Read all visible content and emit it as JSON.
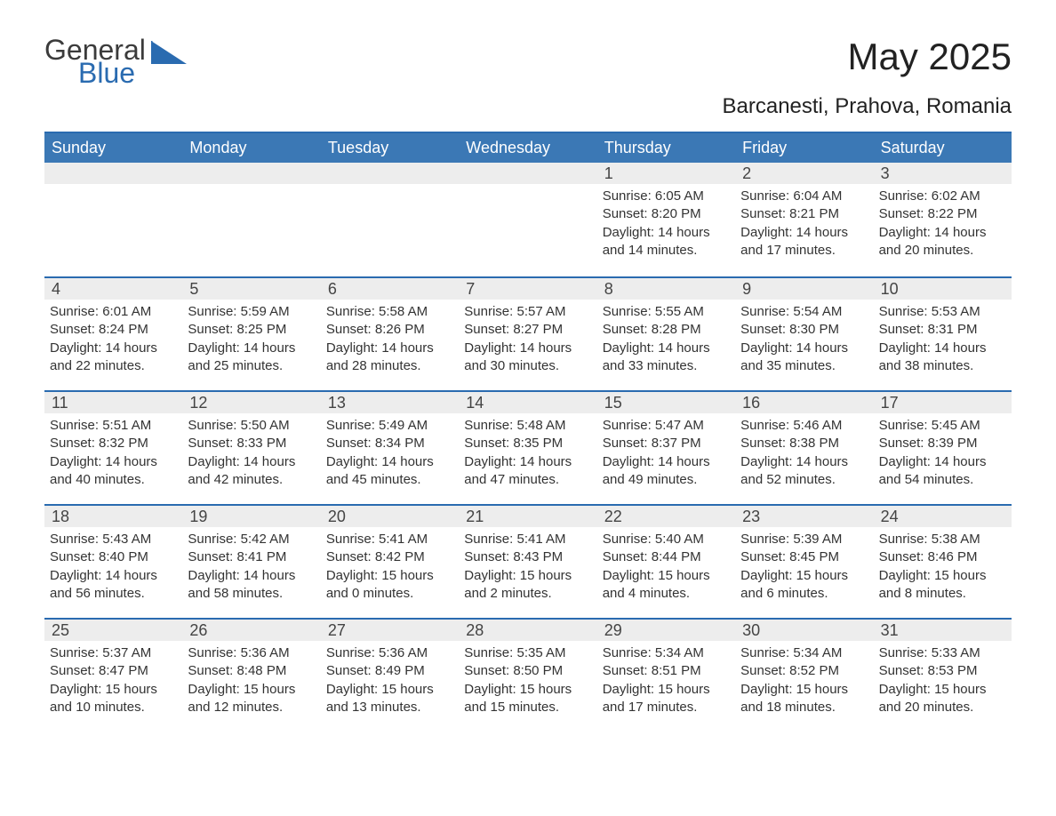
{
  "brand": {
    "word1": "General",
    "word2": "Blue"
  },
  "title": "May 2025",
  "location": "Barcanesti, Prahova, Romania",
  "colors": {
    "header_bg": "#3b78b5",
    "header_text": "#ffffff",
    "accent_border": "#2a6bb0",
    "daynum_bg": "#ededed",
    "text": "#333333",
    "page_bg": "#ffffff",
    "logo_gray": "#3b3b3b",
    "logo_blue": "#2a6bb0"
  },
  "typography": {
    "title_fontsize": 42,
    "location_fontsize": 24,
    "dow_fontsize": 18,
    "daynum_fontsize": 18,
    "body_fontsize": 15
  },
  "layout": {
    "columns": 7,
    "leading_blanks": 4,
    "cell_min_height": 128
  },
  "dow": [
    "Sunday",
    "Monday",
    "Tuesday",
    "Wednesday",
    "Thursday",
    "Friday",
    "Saturday"
  ],
  "days": [
    {
      "n": "1",
      "sunrise": "Sunrise: 6:05 AM",
      "sunset": "Sunset: 8:20 PM",
      "dlA": "Daylight: 14 hours",
      "dlB": "and 14 minutes."
    },
    {
      "n": "2",
      "sunrise": "Sunrise: 6:04 AM",
      "sunset": "Sunset: 8:21 PM",
      "dlA": "Daylight: 14 hours",
      "dlB": "and 17 minutes."
    },
    {
      "n": "3",
      "sunrise": "Sunrise: 6:02 AM",
      "sunset": "Sunset: 8:22 PM",
      "dlA": "Daylight: 14 hours",
      "dlB": "and 20 minutes."
    },
    {
      "n": "4",
      "sunrise": "Sunrise: 6:01 AM",
      "sunset": "Sunset: 8:24 PM",
      "dlA": "Daylight: 14 hours",
      "dlB": "and 22 minutes."
    },
    {
      "n": "5",
      "sunrise": "Sunrise: 5:59 AM",
      "sunset": "Sunset: 8:25 PM",
      "dlA": "Daylight: 14 hours",
      "dlB": "and 25 minutes."
    },
    {
      "n": "6",
      "sunrise": "Sunrise: 5:58 AM",
      "sunset": "Sunset: 8:26 PM",
      "dlA": "Daylight: 14 hours",
      "dlB": "and 28 minutes."
    },
    {
      "n": "7",
      "sunrise": "Sunrise: 5:57 AM",
      "sunset": "Sunset: 8:27 PM",
      "dlA": "Daylight: 14 hours",
      "dlB": "and 30 minutes."
    },
    {
      "n": "8",
      "sunrise": "Sunrise: 5:55 AM",
      "sunset": "Sunset: 8:28 PM",
      "dlA": "Daylight: 14 hours",
      "dlB": "and 33 minutes."
    },
    {
      "n": "9",
      "sunrise": "Sunrise: 5:54 AM",
      "sunset": "Sunset: 8:30 PM",
      "dlA": "Daylight: 14 hours",
      "dlB": "and 35 minutes."
    },
    {
      "n": "10",
      "sunrise": "Sunrise: 5:53 AM",
      "sunset": "Sunset: 8:31 PM",
      "dlA": "Daylight: 14 hours",
      "dlB": "and 38 minutes."
    },
    {
      "n": "11",
      "sunrise": "Sunrise: 5:51 AM",
      "sunset": "Sunset: 8:32 PM",
      "dlA": "Daylight: 14 hours",
      "dlB": "and 40 minutes."
    },
    {
      "n": "12",
      "sunrise": "Sunrise: 5:50 AM",
      "sunset": "Sunset: 8:33 PM",
      "dlA": "Daylight: 14 hours",
      "dlB": "and 42 minutes."
    },
    {
      "n": "13",
      "sunrise": "Sunrise: 5:49 AM",
      "sunset": "Sunset: 8:34 PM",
      "dlA": "Daylight: 14 hours",
      "dlB": "and 45 minutes."
    },
    {
      "n": "14",
      "sunrise": "Sunrise: 5:48 AM",
      "sunset": "Sunset: 8:35 PM",
      "dlA": "Daylight: 14 hours",
      "dlB": "and 47 minutes."
    },
    {
      "n": "15",
      "sunrise": "Sunrise: 5:47 AM",
      "sunset": "Sunset: 8:37 PM",
      "dlA": "Daylight: 14 hours",
      "dlB": "and 49 minutes."
    },
    {
      "n": "16",
      "sunrise": "Sunrise: 5:46 AM",
      "sunset": "Sunset: 8:38 PM",
      "dlA": "Daylight: 14 hours",
      "dlB": "and 52 minutes."
    },
    {
      "n": "17",
      "sunrise": "Sunrise: 5:45 AM",
      "sunset": "Sunset: 8:39 PM",
      "dlA": "Daylight: 14 hours",
      "dlB": "and 54 minutes."
    },
    {
      "n": "18",
      "sunrise": "Sunrise: 5:43 AM",
      "sunset": "Sunset: 8:40 PM",
      "dlA": "Daylight: 14 hours",
      "dlB": "and 56 minutes."
    },
    {
      "n": "19",
      "sunrise": "Sunrise: 5:42 AM",
      "sunset": "Sunset: 8:41 PM",
      "dlA": "Daylight: 14 hours",
      "dlB": "and 58 minutes."
    },
    {
      "n": "20",
      "sunrise": "Sunrise: 5:41 AM",
      "sunset": "Sunset: 8:42 PM",
      "dlA": "Daylight: 15 hours",
      "dlB": "and 0 minutes."
    },
    {
      "n": "21",
      "sunrise": "Sunrise: 5:41 AM",
      "sunset": "Sunset: 8:43 PM",
      "dlA": "Daylight: 15 hours",
      "dlB": "and 2 minutes."
    },
    {
      "n": "22",
      "sunrise": "Sunrise: 5:40 AM",
      "sunset": "Sunset: 8:44 PM",
      "dlA": "Daylight: 15 hours",
      "dlB": "and 4 minutes."
    },
    {
      "n": "23",
      "sunrise": "Sunrise: 5:39 AM",
      "sunset": "Sunset: 8:45 PM",
      "dlA": "Daylight: 15 hours",
      "dlB": "and 6 minutes."
    },
    {
      "n": "24",
      "sunrise": "Sunrise: 5:38 AM",
      "sunset": "Sunset: 8:46 PM",
      "dlA": "Daylight: 15 hours",
      "dlB": "and 8 minutes."
    },
    {
      "n": "25",
      "sunrise": "Sunrise: 5:37 AM",
      "sunset": "Sunset: 8:47 PM",
      "dlA": "Daylight: 15 hours",
      "dlB": "and 10 minutes."
    },
    {
      "n": "26",
      "sunrise": "Sunrise: 5:36 AM",
      "sunset": "Sunset: 8:48 PM",
      "dlA": "Daylight: 15 hours",
      "dlB": "and 12 minutes."
    },
    {
      "n": "27",
      "sunrise": "Sunrise: 5:36 AM",
      "sunset": "Sunset: 8:49 PM",
      "dlA": "Daylight: 15 hours",
      "dlB": "and 13 minutes."
    },
    {
      "n": "28",
      "sunrise": "Sunrise: 5:35 AM",
      "sunset": "Sunset: 8:50 PM",
      "dlA": "Daylight: 15 hours",
      "dlB": "and 15 minutes."
    },
    {
      "n": "29",
      "sunrise": "Sunrise: 5:34 AM",
      "sunset": "Sunset: 8:51 PM",
      "dlA": "Daylight: 15 hours",
      "dlB": "and 17 minutes."
    },
    {
      "n": "30",
      "sunrise": "Sunrise: 5:34 AM",
      "sunset": "Sunset: 8:52 PM",
      "dlA": "Daylight: 15 hours",
      "dlB": "and 18 minutes."
    },
    {
      "n": "31",
      "sunrise": "Sunrise: 5:33 AM",
      "sunset": "Sunset: 8:53 PM",
      "dlA": "Daylight: 15 hours",
      "dlB": "and 20 minutes."
    }
  ]
}
